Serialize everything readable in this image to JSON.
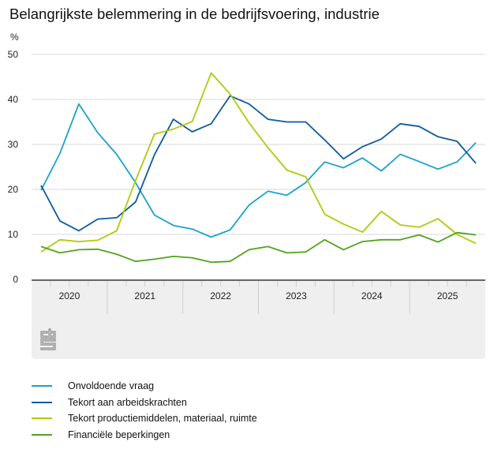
{
  "chart_data": {
    "type": "line",
    "title": "Belangrijkste belemmering in de bedrijfsvoering, industrie",
    "ylabel": "%",
    "xlabel": "",
    "ylim": [
      0,
      50
    ],
    "yticks": [
      0,
      10,
      20,
      30,
      40,
      50
    ],
    "grid": true,
    "years": [
      "2020",
      "2021",
      "2022",
      "2023",
      "2024",
      "2025"
    ],
    "x": [
      "2020-K1",
      "2020-K2",
      "2020-K3",
      "2020-K4",
      "2021-K1",
      "2021-K2",
      "2021-K3",
      "2021-K4",
      "2022-K1",
      "2022-K2",
      "2022-K3",
      "2022-K4",
      "2023-K1",
      "2023-K2",
      "2023-K3",
      "2023-K4",
      "2024-K1",
      "2024-K2",
      "2024-K3",
      "2024-K4",
      "2025-K1",
      "2025-K2",
      "2025-K3",
      "2025-K4"
    ],
    "legend_position": "bottom",
    "series": [
      {
        "name": "Onvoldoende vraag",
        "color": "#1aa3c8",
        "values": [
          19.8,
          28.0,
          39.0,
          32.6,
          27.8,
          21.5,
          14.3,
          12.0,
          11.2,
          9.4,
          11.0,
          16.5,
          19.6,
          18.7,
          21.5,
          26.1,
          24.8,
          27.0,
          24.1,
          27.8,
          26.2,
          24.5,
          26.1,
          30.4
        ]
      },
      {
        "name": "Tekort aan arbeidskrachten",
        "color": "#0e5a9c",
        "values": [
          20.9,
          13.0,
          10.8,
          13.4,
          13.7,
          17.2,
          27.7,
          35.6,
          32.8,
          34.6,
          40.8,
          39.0,
          35.6,
          35.0,
          35.0,
          31.0,
          26.8,
          29.5,
          31.2,
          34.6,
          34.0,
          31.7,
          30.7,
          25.8
        ]
      },
      {
        "name": "Tekort productiemiddelen, materiaal, ruimte",
        "color": "#afca0b",
        "values": [
          6.1,
          8.8,
          8.4,
          8.7,
          10.8,
          22.0,
          32.3,
          33.4,
          35.1,
          45.9,
          41.2,
          34.8,
          29.3,
          24.3,
          22.8,
          14.5,
          12.3,
          10.5,
          15.1,
          12.1,
          11.6,
          13.5,
          10.0,
          8.0
        ]
      },
      {
        "name": "Financiële beperkingen",
        "color": "#53a31d",
        "values": [
          7.3,
          5.9,
          6.6,
          6.7,
          5.6,
          4.0,
          4.5,
          5.1,
          4.8,
          3.8,
          4.0,
          6.6,
          7.3,
          5.9,
          6.1,
          8.8,
          6.6,
          8.4,
          8.8,
          8.8,
          9.9,
          8.3,
          10.4,
          9.9
        ]
      }
    ]
  },
  "logo": {
    "icon": "cbs-logo-icon"
  }
}
